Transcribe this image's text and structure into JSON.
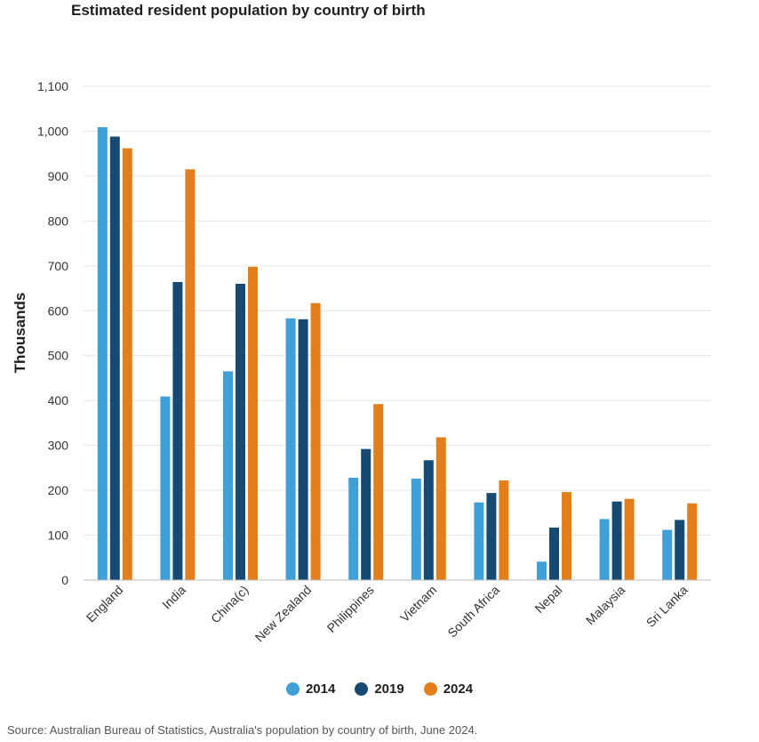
{
  "chart_data": {
    "type": "bar",
    "title": "Estimated resident population by country of birth",
    "xlabel": "",
    "ylabel": "Thousands",
    "ylim": [
      0,
      1100
    ],
    "yticks": [
      0,
      100,
      200,
      300,
      400,
      500,
      600,
      700,
      800,
      900,
      1000,
      1100
    ],
    "ytick_labels": [
      "0",
      "100",
      "200",
      "300",
      "400",
      "500",
      "600",
      "700",
      "800",
      "900",
      "1,000",
      "1,100"
    ],
    "grid": true,
    "legend_position": "bottom-center",
    "categories": [
      "England",
      "India",
      "China(c)",
      "New Zealand",
      "Philippines",
      "Vietnam",
      "South Africa",
      "Nepal",
      "Malaysia",
      "Sri Lanka"
    ],
    "series": [
      {
        "name": "2014",
        "color": "#3fa0d8",
        "values": [
          1009,
          409,
          465,
          583,
          228,
          226,
          173,
          41,
          136,
          112
        ]
      },
      {
        "name": "2019",
        "color": "#164a72",
        "values": [
          988,
          664,
          660,
          581,
          292,
          267,
          194,
          117,
          175,
          134
        ]
      },
      {
        "name": "2024",
        "color": "#e37f1b",
        "values": [
          962,
          915,
          698,
          617,
          392,
          318,
          222,
          196,
          181,
          171
        ]
      }
    ],
    "source": "Source: Australian Bureau of Statistics, Australia's population by country of birth, June 2024."
  }
}
